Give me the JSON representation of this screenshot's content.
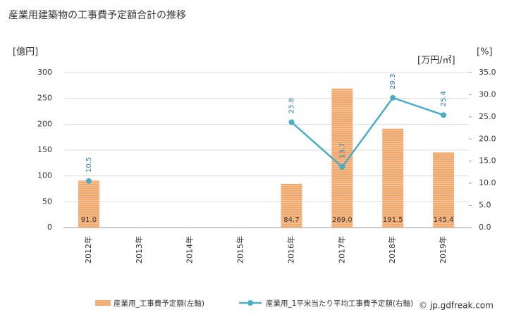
{
  "chart_data": {
    "type": "bar-line",
    "title": "産業用建築物の工事費予定額合計の推移",
    "y_unit": "[億円]",
    "y2_unit_1": "[万円/㎡]",
    "y2_unit_2": "[%]",
    "categories": [
      "2012年",
      "2013年",
      "2014年",
      "2015年",
      "2016年",
      "2017年",
      "2018年",
      "2019年"
    ],
    "series": [
      {
        "name": "産業用_工事費予定額(左軸)",
        "type": "bar",
        "color": "#f2a66a",
        "values": [
          91.0,
          null,
          null,
          null,
          84.7,
          269.0,
          191.5,
          145.4
        ],
        "value_labels": [
          "91.0",
          null,
          null,
          null,
          "84.7",
          "269.0",
          "191.5",
          "145.4"
        ]
      },
      {
        "name": "産業用_1平米当たり平均工事費予定額(右軸)",
        "type": "line",
        "axis": "y2",
        "color": "#4bacc6",
        "values": [
          10.5,
          null,
          null,
          null,
          23.8,
          13.7,
          29.3,
          25.4
        ]
      }
    ],
    "ylim": [
      0,
      300
    ],
    "yticks": [
      0,
      50,
      100,
      150,
      200,
      250,
      300
    ],
    "y2lim": [
      0,
      35
    ],
    "y2ticks": [
      {
        "value": 0,
        "label": "0.0"
      },
      {
        "value": 5,
        "label": "5.0"
      },
      {
        "value": 10,
        "label": "10.0"
      },
      {
        "value": 15,
        "label": "15.0"
      },
      {
        "value": 20,
        "label": "20.0"
      },
      {
        "value": 25,
        "label": "25.0"
      },
      {
        "value": 30,
        "label": "30.0"
      },
      {
        "value": 35,
        "label": "35.0"
      }
    ],
    "grid": true,
    "watermark": "© jp.gdfreak.com"
  }
}
